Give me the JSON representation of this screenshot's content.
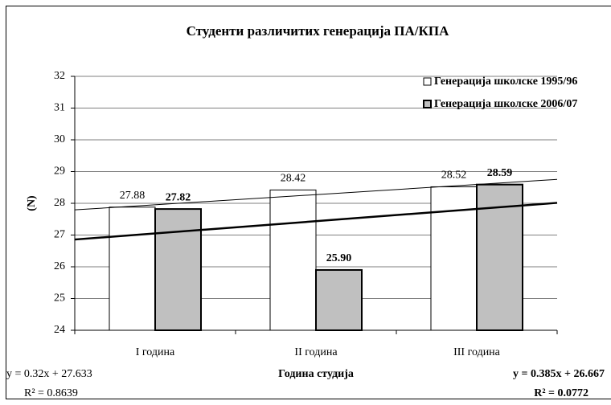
{
  "chart_data": {
    "type": "bar",
    "title": "Студенти различитих генерација ПА/КПА",
    "x_label": "Година студија",
    "y_label": "(N)",
    "categories": [
      "I година",
      "II година",
      "III година"
    ],
    "series": [
      {
        "name": "Генерација школске 1995/96",
        "color": "#ffffff",
        "values": [
          27.88,
          28.42,
          28.52
        ],
        "value_labels": [
          "27.88",
          "28.42",
          "28.52"
        ],
        "trendline": {
          "equation": "y = 0.32x + 27.633",
          "r_squared": "R² = 0.8639"
        }
      },
      {
        "name": "Генерација школске 2006/07",
        "color": "#c0c0c0",
        "values": [
          27.82,
          25.9,
          28.59
        ],
        "value_labels": [
          "27.82",
          "25.90",
          "28.59"
        ],
        "trendline": {
          "equation": "y = 0.385x + 26.667",
          "r_squared": "R² = 0.0772"
        }
      }
    ],
    "ylim": [
      24,
      32
    ],
    "yticks": [
      24,
      25,
      26,
      27,
      28,
      29,
      30,
      31,
      32
    ],
    "grid": true,
    "legend": "top-right"
  }
}
